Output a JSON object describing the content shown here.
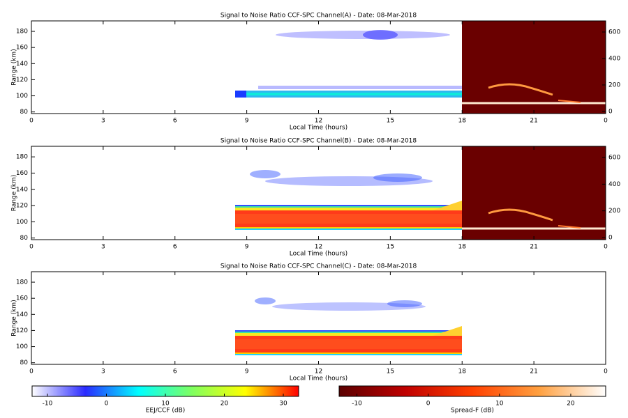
{
  "chart_data": [
    {
      "type": "heatmap",
      "title": "Signal to Noise Ratio CCF-SPC Channel(A) - Date: 08-Mar-2018",
      "xlabel": "Local Time (hours)",
      "ylabel": "Range (km)",
      "xlim": [
        0,
        24
      ],
      "xticks": [
        0,
        3,
        6,
        9,
        12,
        15,
        18,
        21,
        {
          "value": 24,
          "label": "0"
        }
      ],
      "ylim": [
        78,
        193
      ],
      "yticks": [
        80,
        100,
        120,
        140,
        160,
        180
      ],
      "y2lim": [
        -16,
        684
      ],
      "y2ticks": [
        0,
        200,
        400,
        600
      ]
    },
    {
      "type": "heatmap",
      "title": "Signal to Noise Ratio CCF-SPC Channel(B) - Date: 08-Mar-2018",
      "xlabel": "Local Time (hours)",
      "ylabel": "Range (km)",
      "xlim": [
        0,
        24
      ],
      "xticks": [
        0,
        3,
        6,
        9,
        12,
        15,
        18,
        21,
        {
          "value": 24,
          "label": "0"
        }
      ],
      "ylim": [
        78,
        193
      ],
      "yticks": [
        80,
        100,
        120,
        140,
        160,
        180
      ],
      "y2lim": [
        -16,
        684
      ],
      "y2ticks": [
        0,
        200,
        400,
        600
      ]
    },
    {
      "type": "heatmap",
      "title": "Signal to Noise Ratio CCF-SPC Channel(C) - Date: 08-Mar-2018",
      "xlabel": "Local Time (hours)",
      "ylabel": "Range (km)",
      "xlim": [
        0,
        24
      ],
      "xticks": [
        0,
        3,
        6,
        9,
        12,
        15,
        18,
        21,
        {
          "value": 24,
          "label": "0"
        }
      ],
      "ylim": [
        78,
        193
      ],
      "yticks": [
        80,
        100,
        120,
        140,
        160,
        180
      ]
    },
    {
      "type": "colorbar",
      "label": "EEJ/CCF (dB)",
      "xlim": [
        -12.6,
        32.6
      ],
      "xticks": [
        -10,
        0,
        10,
        20,
        30
      ],
      "colors": [
        "#ffffff",
        "#2a2aff",
        "#00ffff",
        "#7fff60",
        "#ffff00",
        "#ff0000"
      ]
    },
    {
      "type": "colorbar",
      "label": "Spread-F (dB)",
      "xlim": [
        -12.5,
        24.9
      ],
      "xticks": [
        -10,
        0,
        10,
        20
      ],
      "colors": [
        "#5a0000",
        "#c00000",
        "#ff4000",
        "#ffa040",
        "#ffffff"
      ]
    }
  ]
}
